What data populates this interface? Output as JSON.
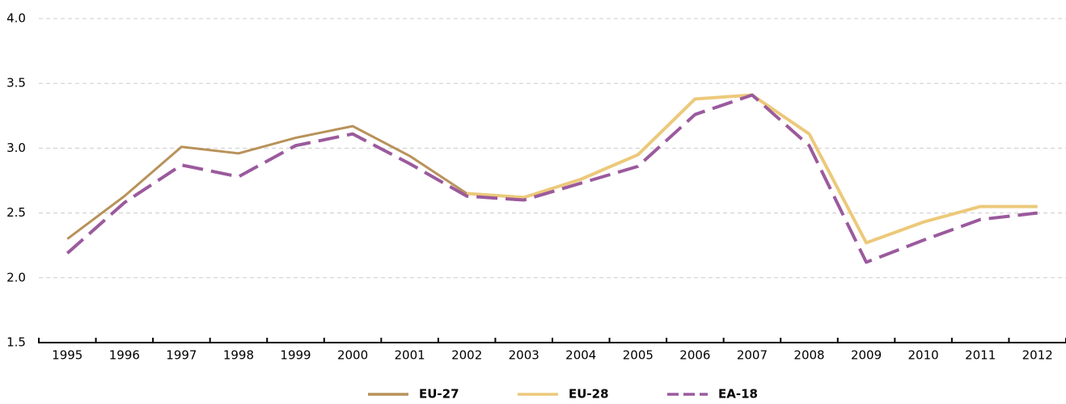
{
  "chart_data": {
    "type": "line",
    "categories": [
      "1995",
      "1996",
      "1997",
      "1998",
      "1999",
      "2000",
      "2001",
      "2002",
      "2003",
      "2004",
      "2005",
      "2006",
      "2007",
      "2008",
      "2009",
      "2010",
      "2011",
      "2012"
    ],
    "series": [
      {
        "name": "EU-27",
        "color": "#b8925a",
        "dash": false,
        "values": [
          2.3,
          2.63,
          3.01,
          2.96,
          3.08,
          3.17,
          2.94,
          2.65,
          2.62,
          null,
          null,
          null,
          null,
          null,
          null,
          null,
          null,
          null
        ]
      },
      {
        "name": "EU-28",
        "color": "#ecc97a",
        "dash": false,
        "values": [
          null,
          null,
          null,
          null,
          null,
          null,
          null,
          2.65,
          2.62,
          2.76,
          2.95,
          3.38,
          3.41,
          3.11,
          2.27,
          2.43,
          2.55,
          2.55
        ]
      },
      {
        "name": "EA-18",
        "color": "#9b5a9d",
        "dash": true,
        "values": [
          2.19,
          2.58,
          2.87,
          2.78,
          3.02,
          3.11,
          2.88,
          2.63,
          2.6,
          2.73,
          2.86,
          3.26,
          3.41,
          3.02,
          2.12,
          2.29,
          2.45,
          2.5
        ]
      }
    ],
    "ylim": [
      1.5,
      4.0
    ],
    "yticks": [
      {
        "value": 1.5,
        "label": "1.5"
      },
      {
        "value": 2.0,
        "label": "2.0"
      },
      {
        "value": 2.5,
        "label": "2.5"
      },
      {
        "value": 3.0,
        "label": "3.0"
      },
      {
        "value": 3.5,
        "label": "3.5"
      },
      {
        "value": 4.0,
        "label": "4.0"
      }
    ],
    "grid": true
  }
}
